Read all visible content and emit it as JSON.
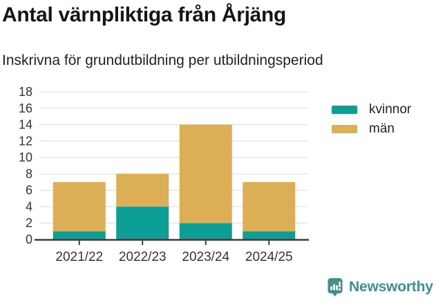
{
  "header": {
    "title": "Antal värnpliktiga från Årjäng",
    "subtitle": "Inskrivna för grundutbildning per utbildningsperiod"
  },
  "legend": {
    "items": [
      {
        "label": "kvinnor",
        "color": "#0d9e96"
      },
      {
        "label": "män",
        "color": "#dcae55"
      }
    ]
  },
  "chart_data": {
    "type": "bar",
    "stacked": true,
    "title": "Antal värnpliktiga från Årjäng",
    "subtitle": "Inskrivna för grundutbildning per utbildningsperiod",
    "categories": [
      "2021/22",
      "2022/23",
      "2023/24",
      "2024/25"
    ],
    "series": [
      {
        "name": "kvinnor",
        "color": "#0d9e96",
        "values": [
          1,
          4,
          2,
          1
        ]
      },
      {
        "name": "män",
        "color": "#dcae55",
        "values": [
          6,
          4,
          12,
          6
        ]
      }
    ],
    "stack_totals": [
      7,
      8,
      14,
      7
    ],
    "xlabel": "",
    "ylabel": "",
    "ylim": [
      0,
      18
    ],
    "yticks": [
      0,
      2,
      4,
      6,
      8,
      10,
      12,
      14,
      16,
      18
    ],
    "grid": true,
    "legend_position": "right",
    "axis_color": "#3b3b3b",
    "grid_color": "#e3e3e3",
    "label_color": "#333333"
  },
  "footer": {
    "brand_name": "Newsworthy",
    "brand_color": "#3d928b"
  }
}
